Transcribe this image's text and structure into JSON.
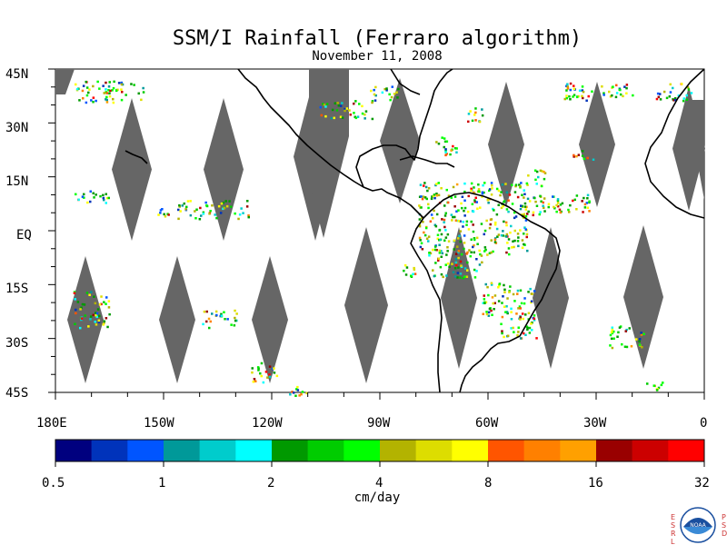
{
  "map": {
    "title": "SSM/I Rainfall (Ferraro algorithm)",
    "subtitle": "November 11, 2008",
    "lat_labels": [
      "45N",
      "30N",
      "15N",
      "EQ",
      "15S",
      "30S",
      "45S"
    ],
    "lon_labels": [
      "180E",
      "150W",
      "120W",
      "90W",
      "60W",
      "30W",
      "0"
    ],
    "swath_color": "#666666",
    "coast_color": "#000000"
  },
  "colorbar": {
    "unit": "cm/day",
    "tick_labels": [
      "0.5",
      "1",
      "2",
      "4",
      "8",
      "16",
      "32"
    ],
    "colors": [
      "#00007f",
      "#0033bb",
      "#0055ff",
      "#009999",
      "#00cccc",
      "#00ffff",
      "#009900",
      "#00cc00",
      "#00ff00",
      "#b3b300",
      "#dddd00",
      "#ffff00",
      "#ff5500",
      "#ff8000",
      "#ffa000",
      "#990000",
      "#cc0000",
      "#ff0000"
    ]
  },
  "logo": {
    "left_text": "ESRL",
    "right_text": "PSD",
    "center_text": "NOAA"
  }
}
